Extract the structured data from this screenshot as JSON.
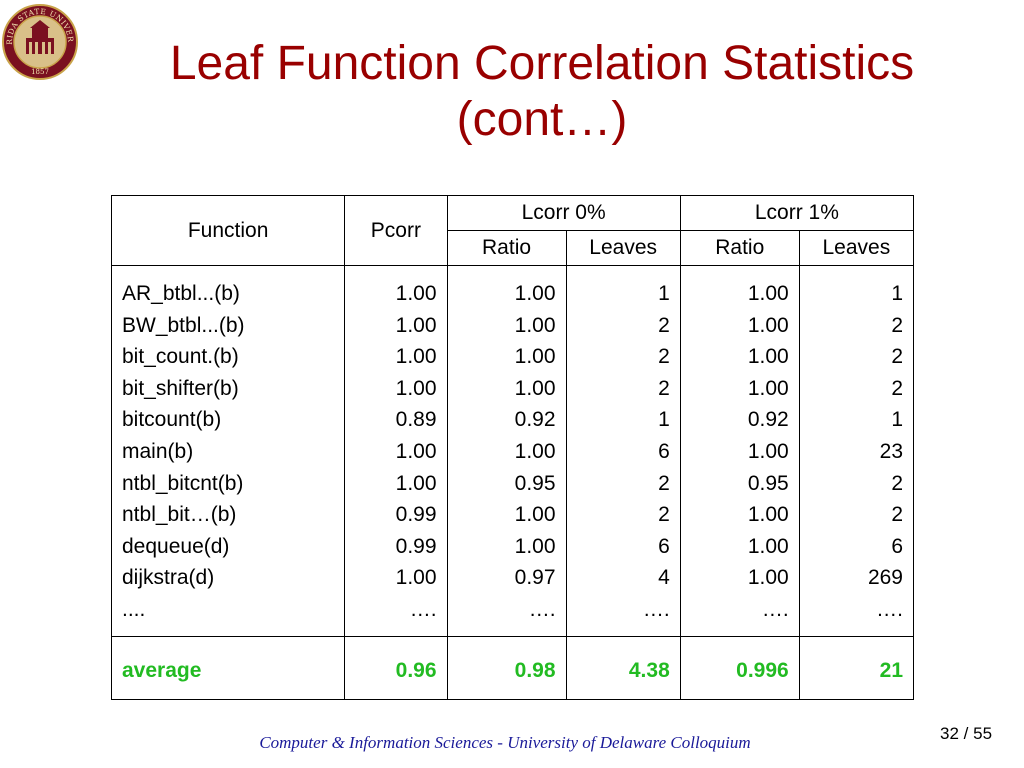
{
  "slide": {
    "title_line1": "Leaf Function Correlation Statistics",
    "title_line2": "(cont…)",
    "seal_text_top": "FLORIDA STATE UNIVERSITY",
    "seal_year": "1857",
    "accent_color": "#990000",
    "average_color": "#22bb22",
    "footer": "Computer & Information Sciences - University of Delaware Colloquium",
    "page_current": "32",
    "page_sep": "/",
    "page_total": "55"
  },
  "table": {
    "headers": {
      "function": "Function",
      "pcorr": "Pcorr",
      "lcorr0": "Lcorr 0%",
      "lcorr1": "Lcorr 1%",
      "ratio0": "Ratio",
      "leaves0": "Leaves",
      "ratio1": "Ratio",
      "leaves1": "Leaves"
    },
    "rows": [
      {
        "function": "AR_btbl...(b)",
        "pcorr": "1.00",
        "ratio0": "1.00",
        "leaves0": "1",
        "ratio1": "1.00",
        "leaves1": "1"
      },
      {
        "function": "BW_btbl...(b)",
        "pcorr": "1.00",
        "ratio0": "1.00",
        "leaves0": "2",
        "ratio1": "1.00",
        "leaves1": "2"
      },
      {
        "function": "bit_count.(b)",
        "pcorr": "1.00",
        "ratio0": "1.00",
        "leaves0": "2",
        "ratio1": "1.00",
        "leaves1": "2"
      },
      {
        "function": "bit_shifter(b)",
        "pcorr": "1.00",
        "ratio0": "1.00",
        "leaves0": "2",
        "ratio1": "1.00",
        "leaves1": "2"
      },
      {
        "function": "bitcount(b)",
        "pcorr": "0.89",
        "ratio0": "0.92",
        "leaves0": "1",
        "ratio1": "0.92",
        "leaves1": "1"
      },
      {
        "function": "main(b)",
        "pcorr": "1.00",
        "ratio0": "1.00",
        "leaves0": "6",
        "ratio1": "1.00",
        "leaves1": "23"
      },
      {
        "function": "ntbl_bitcnt(b)",
        "pcorr": "1.00",
        "ratio0": "0.95",
        "leaves0": "2",
        "ratio1": "0.95",
        "leaves1": "2"
      },
      {
        "function": "ntbl_bit…(b)",
        "pcorr": "0.99",
        "ratio0": "1.00",
        "leaves0": "2",
        "ratio1": "1.00",
        "leaves1": "2"
      },
      {
        "function": "dequeue(d)",
        "pcorr": "0.99",
        "ratio0": "1.00",
        "leaves0": "6",
        "ratio1": "1.00",
        "leaves1": "6"
      },
      {
        "function": "dijkstra(d)",
        "pcorr": "1.00",
        "ratio0": "0.97",
        "leaves0": "4",
        "ratio1": "1.00",
        "leaves1": "269"
      },
      {
        "function": "....",
        "pcorr": "….",
        "ratio0": "….",
        "leaves0": "….",
        "ratio1": "….",
        "leaves1": "…."
      }
    ],
    "average": {
      "function": "average",
      "pcorr": "0.96",
      "ratio0": "0.98",
      "leaves0": "4.38",
      "ratio1": "0.996",
      "leaves1": "21"
    }
  }
}
